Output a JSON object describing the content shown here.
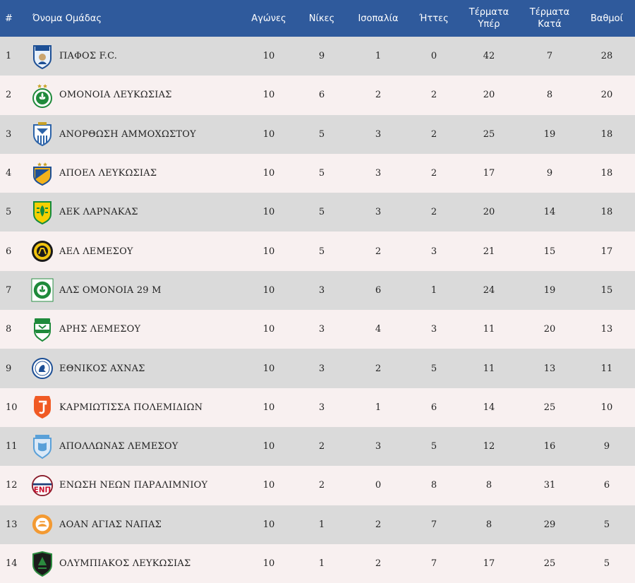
{
  "headers": {
    "rank": "#",
    "team": "Όνομα Ομάδας",
    "played": "Αγώνες",
    "wins": "Νίκες",
    "draws": "Ισοπαλία",
    "losses": "Ήττες",
    "gf_1": "Τέρματα",
    "gf_2": "Υπέρ",
    "ga_1": "Τέρματα",
    "ga_2": "Κατά",
    "points": "Βαθμοί"
  },
  "colors": {
    "header_bg": "#2f5a9c",
    "row_odd": "#dadada",
    "row_even": "#f8f0f0"
  },
  "rows": [
    {
      "rank": "1",
      "team": "ΠΑΦΟΣ F.C.",
      "played": "10",
      "wins": "9",
      "draws": "1",
      "losses": "0",
      "gf": "42",
      "ga": "7",
      "points": "28",
      "logo": "pafos-fc-crest-icon"
    },
    {
      "rank": "2",
      "team": "ΟΜΟΝΟΙΑ ΛΕΥΚΩΣΙΑΣ",
      "played": "10",
      "wins": "6",
      "draws": "2",
      "losses": "2",
      "gf": "20",
      "ga": "8",
      "points": "20",
      "logo": "omonoia-crest-icon"
    },
    {
      "rank": "3",
      "team": "ΑΝΟΡΘΩΣΗ ΑΜΜΟΧΩΣΤΟΥ",
      "played": "10",
      "wins": "5",
      "draws": "3",
      "losses": "2",
      "gf": "25",
      "ga": "19",
      "points": "18",
      "logo": "anorthosis-crest-icon"
    },
    {
      "rank": "4",
      "team": "ΑΠΟΕΛ ΛΕΥΚΩΣΙΑΣ",
      "played": "10",
      "wins": "5",
      "draws": "3",
      "losses": "2",
      "gf": "17",
      "ga": "9",
      "points": "18",
      "logo": "apoel-crest-icon"
    },
    {
      "rank": "5",
      "team": "ΑΕΚ ΛΑΡΝΑΚΑΣ",
      "played": "10",
      "wins": "5",
      "draws": "3",
      "losses": "2",
      "gf": "20",
      "ga": "14",
      "points": "18",
      "logo": "aek-larnaca-crest-icon"
    },
    {
      "rank": "6",
      "team": "ΑΕΛ ΛΕΜΕΣΟΥ",
      "played": "10",
      "wins": "5",
      "draws": "2",
      "losses": "3",
      "gf": "21",
      "ga": "15",
      "points": "17",
      "logo": "ael-crest-icon"
    },
    {
      "rank": "7",
      "team": "ΑΛΣ ΟΜΟΝΟΙΑ 29 Μ",
      "played": "10",
      "wins": "3",
      "draws": "6",
      "losses": "1",
      "gf": "24",
      "ga": "19",
      "points": "15",
      "logo": "omonoia-29m-crest-icon"
    },
    {
      "rank": "8",
      "team": "ΑΡΗΣ ΛΕΜΕΣΟΥ",
      "played": "10",
      "wins": "3",
      "draws": "4",
      "losses": "3",
      "gf": "11",
      "ga": "20",
      "points": "13",
      "logo": "aris-crest-icon"
    },
    {
      "rank": "9",
      "team": "ΕΘΝΙΚΟΣ ΑΧΝΑΣ",
      "played": "10",
      "wins": "3",
      "draws": "2",
      "losses": "5",
      "gf": "11",
      "ga": "13",
      "points": "11",
      "logo": "ethnikos-crest-icon"
    },
    {
      "rank": "10",
      "team": "ΚΑΡΜΙΩΤΙΣΣΑ ΠΟΛΕΜΙΔΙΩΝ",
      "played": "10",
      "wins": "3",
      "draws": "1",
      "losses": "6",
      "gf": "14",
      "ga": "25",
      "points": "10",
      "logo": "karmiotissa-crest-icon"
    },
    {
      "rank": "11",
      "team": "ΑΠΟΛΛΩΝΑΣ ΛΕΜΕΣΟΥ",
      "played": "10",
      "wins": "2",
      "draws": "3",
      "losses": "5",
      "gf": "12",
      "ga": "16",
      "points": "9",
      "logo": "apollon-crest-icon"
    },
    {
      "rank": "12",
      "team": "ΕΝΩΣΗ ΝΕΩΝ ΠΑΡΑΛΙΜΝΙΟΥ",
      "played": "10",
      "wins": "2",
      "draws": "0",
      "losses": "8",
      "gf": "8",
      "ga": "31",
      "points": "6",
      "logo": "enp-crest-icon"
    },
    {
      "rank": "13",
      "team": "ΑΟΑΝ ΑΓΙΑΣ ΝΑΠΑΣ",
      "played": "10",
      "wins": "1",
      "draws": "2",
      "losses": "7",
      "gf": "8",
      "ga": "29",
      "points": "5",
      "logo": "ayia-napa-crest-icon"
    },
    {
      "rank": "14",
      "team": "ΟΛΥΜΠΙΑΚΟΣ ΛΕΥΚΩΣΙΑΣ",
      "played": "10",
      "wins": "1",
      "draws": "2",
      "losses": "7",
      "gf": "17",
      "ga": "25",
      "points": "5",
      "logo": "olympiakos-crest-icon"
    }
  ]
}
